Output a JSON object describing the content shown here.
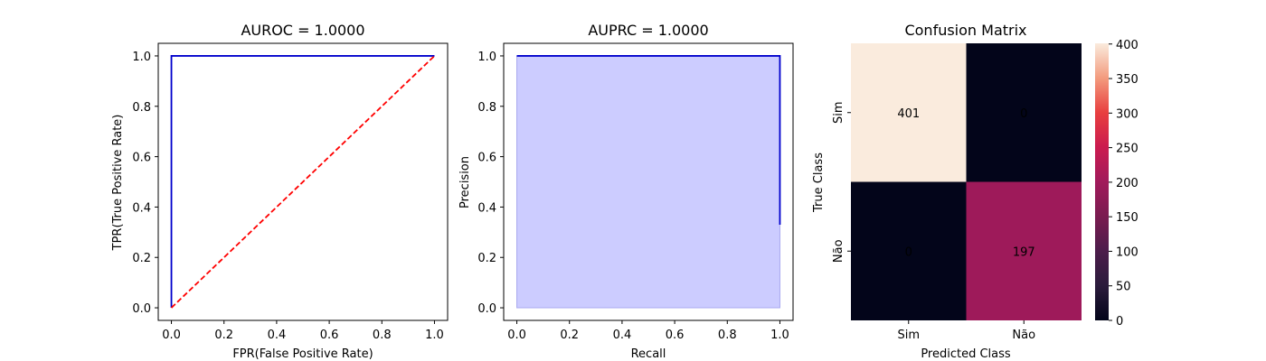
{
  "chart_data": [
    {
      "type": "line",
      "title": "AUROC = 1.0000",
      "xlabel": "FPR(False Positive Rate)",
      "ylabel": "TPR(True Positive Rate)",
      "xlim": [
        -0.05,
        1.05
      ],
      "ylim": [
        -0.05,
        1.05
      ],
      "xticks": [
        "0.0",
        "0.2",
        "0.4",
        "0.6",
        "0.8",
        "1.0"
      ],
      "yticks": [
        "0.0",
        "0.2",
        "0.4",
        "0.6",
        "0.8",
        "1.0"
      ],
      "series": [
        {
          "color": "#0000cc",
          "style": "solid",
          "x": [
            0,
            0,
            1
          ],
          "y": [
            0,
            1,
            1
          ]
        },
        {
          "color": "#ff0000",
          "style": "dashed",
          "x": [
            0,
            1
          ],
          "y": [
            0,
            1
          ]
        }
      ]
    },
    {
      "type": "area",
      "title": "AUPRC = 1.0000",
      "xlabel": "Recall",
      "ylabel": "Precision",
      "xlim": [
        -0.05,
        1.05
      ],
      "ylim": [
        -0.05,
        1.05
      ],
      "xticks": [
        "0.0",
        "0.2",
        "0.4",
        "0.6",
        "0.8",
        "1.0"
      ],
      "yticks": [
        "0.0",
        "0.2",
        "0.4",
        "0.6",
        "0.8",
        "1.0"
      ],
      "series": [
        {
          "color": "#0000cc",
          "fill": "#ccccff",
          "x": [
            0,
            1,
            1
          ],
          "y": [
            1,
            1,
            0.33
          ]
        }
      ]
    },
    {
      "type": "heatmap",
      "title": "Confusion Matrix",
      "xlabel": "Predicted Class",
      "ylabel": "True Class",
      "x_categories": [
        "Sim",
        "Não"
      ],
      "y_categories": [
        "Sim",
        "Não"
      ],
      "values": [
        [
          401,
          0
        ],
        [
          0,
          197
        ]
      ],
      "colorbar_ticks": [
        "0",
        "50",
        "100",
        "150",
        "200",
        "250",
        "300",
        "350",
        "400"
      ],
      "colorbar_range": [
        0,
        401
      ]
    }
  ]
}
